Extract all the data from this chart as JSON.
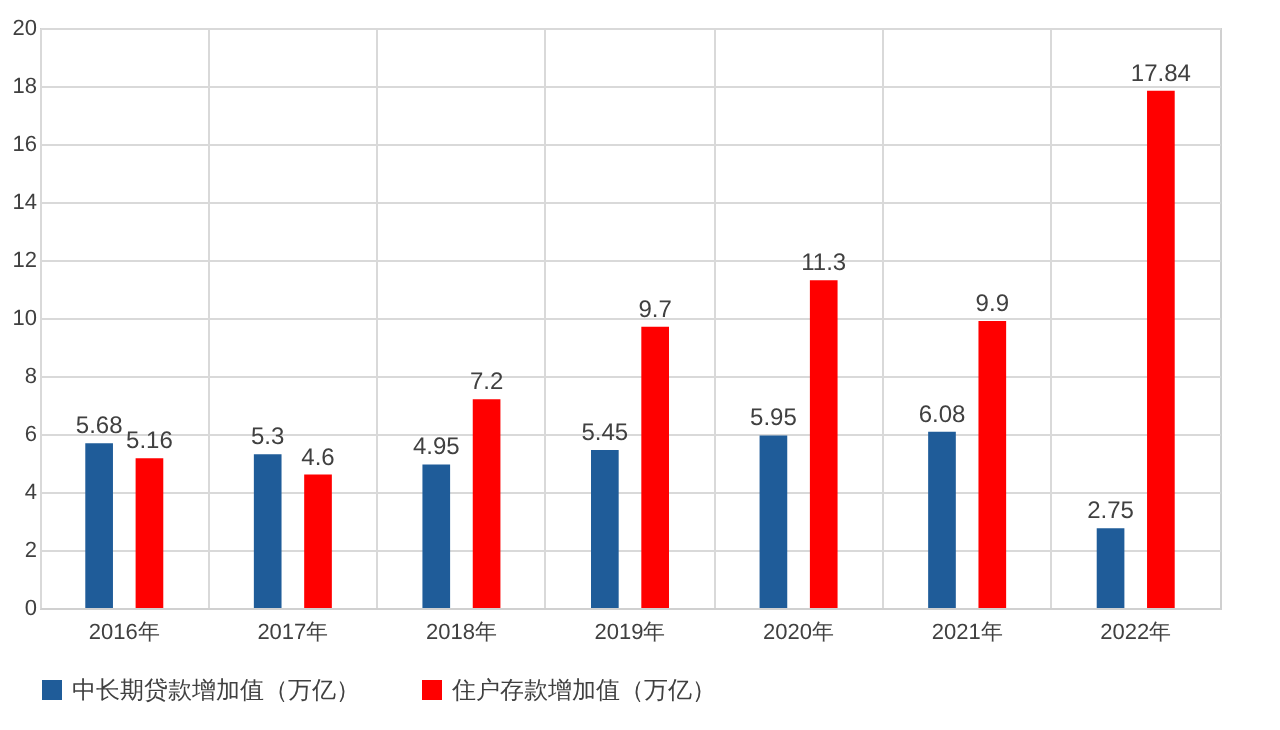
{
  "chart_data": {
    "type": "bar",
    "categories": [
      "2016年",
      "2017年",
      "2018年",
      "2019年",
      "2020年",
      "2021年",
      "2022年"
    ],
    "series": [
      {
        "name": "中长期贷款增加值（万亿）",
        "color": "#1f5c99",
        "values": [
          5.68,
          5.3,
          4.95,
          5.45,
          5.95,
          6.08,
          2.75
        ]
      },
      {
        "name": "住户存款增加值（万亿）",
        "color": "#ff0000",
        "values": [
          5.16,
          4.6,
          7.2,
          9.7,
          11.3,
          9.9,
          17.84
        ]
      }
    ],
    "ylim": [
      0,
      20
    ],
    "yticks": [
      0,
      2,
      4,
      6,
      8,
      10,
      12,
      14,
      16,
      18,
      20
    ],
    "grid": true,
    "legend": "bottom",
    "data_labels": true
  }
}
